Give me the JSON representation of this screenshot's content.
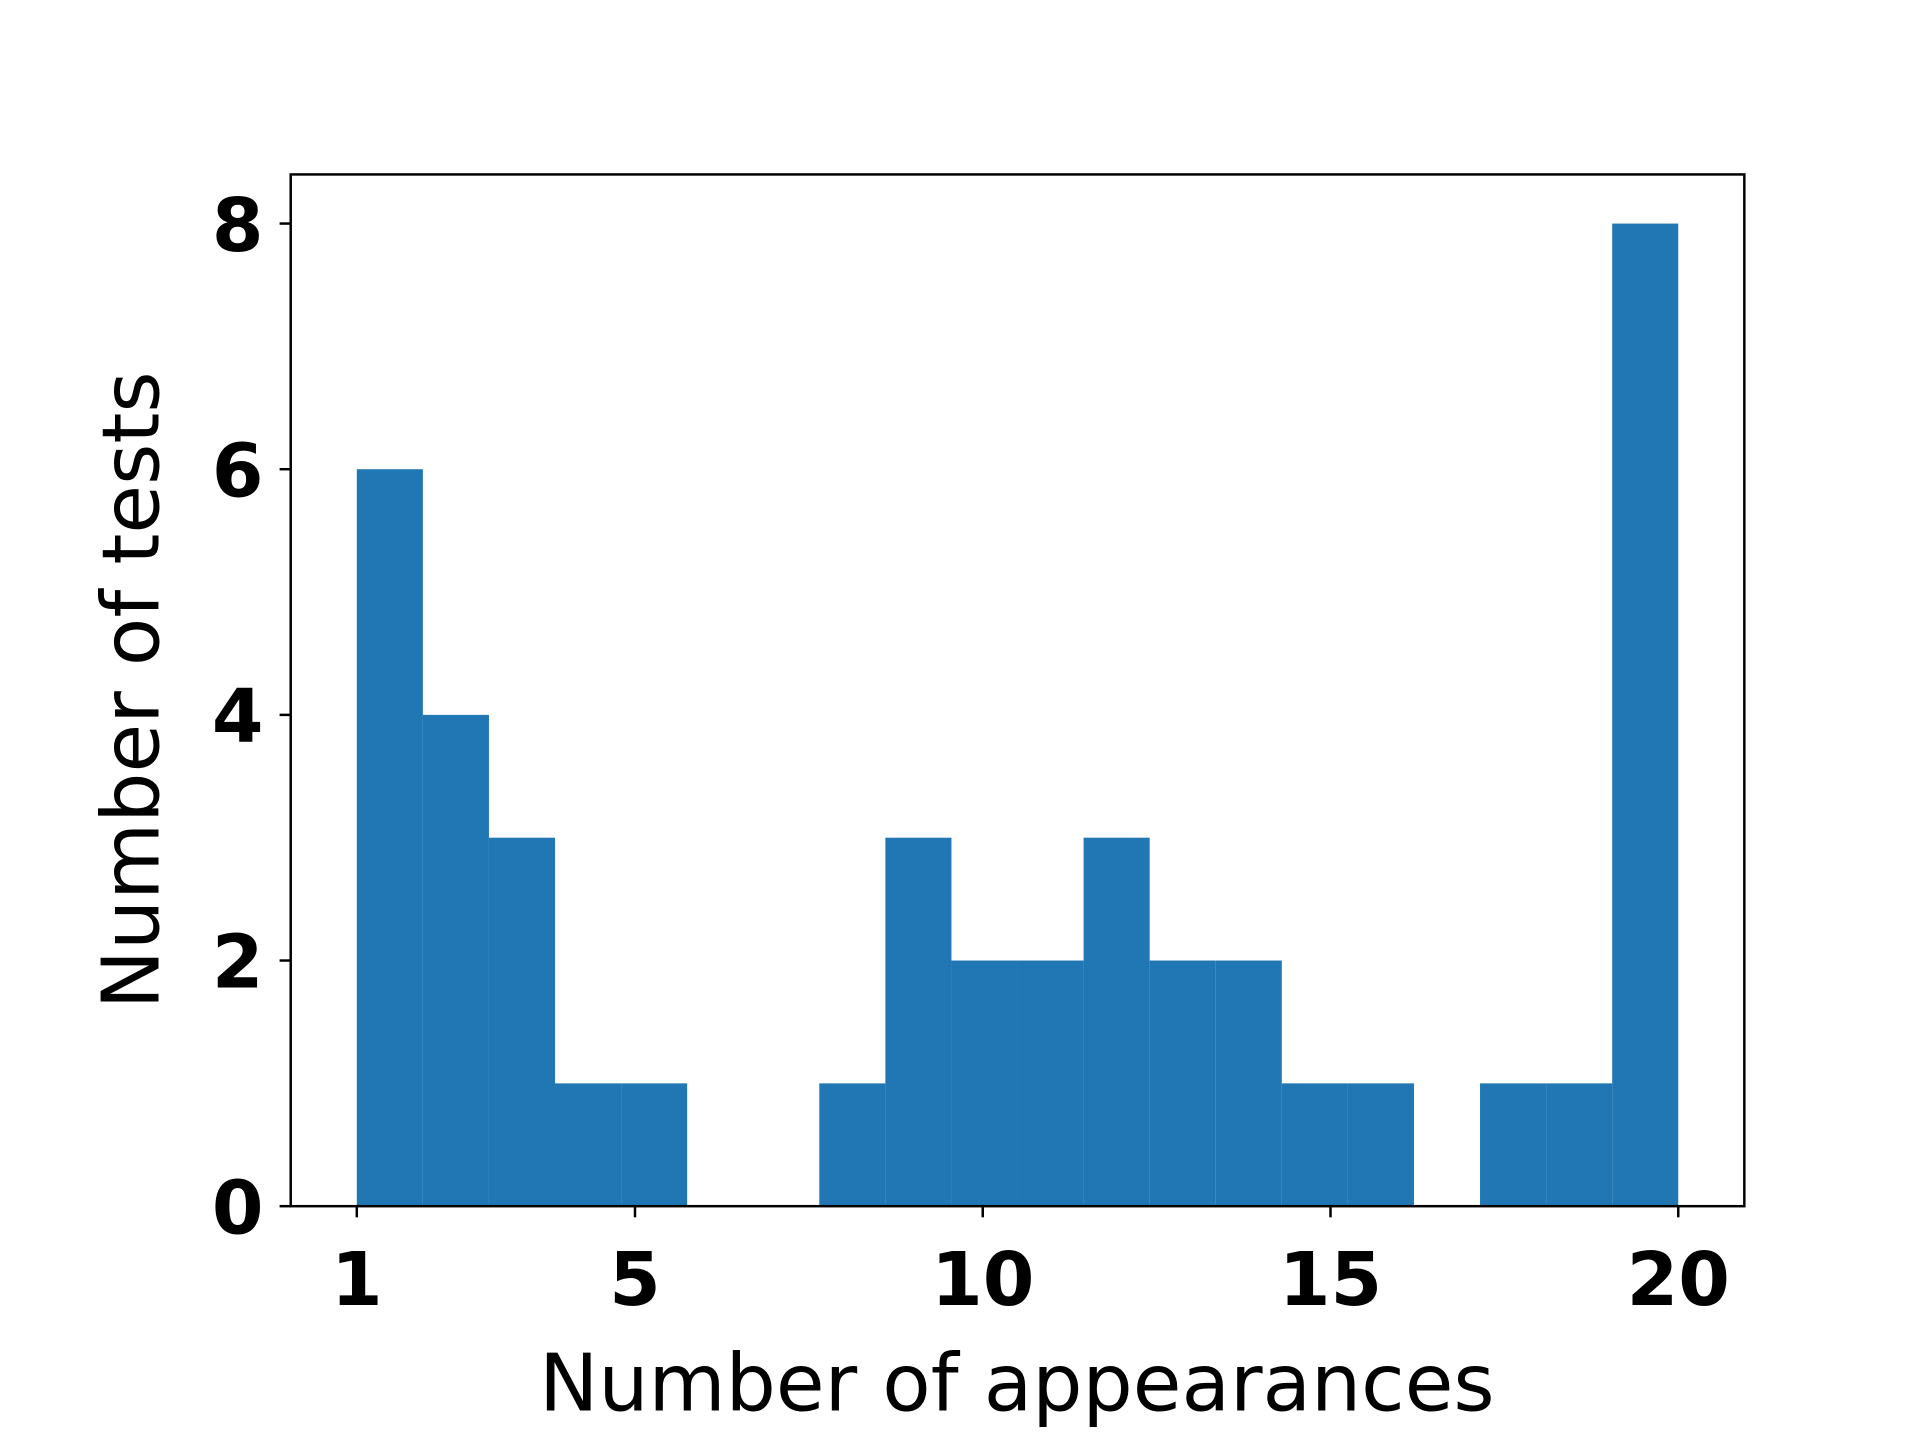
{
  "chart_data": {
    "type": "histogram",
    "xlabel": "Number of appearances",
    "ylabel": "Number of tests",
    "bins": [
      1,
      1.95,
      2.9,
      3.85,
      4.8,
      5.75,
      6.7,
      7.65,
      8.6,
      9.55,
      10.5,
      11.45,
      12.4,
      13.35,
      14.3,
      15.25,
      16.2,
      17.15,
      18.1,
      19.05,
      20
    ],
    "values": [
      6,
      4,
      3,
      1,
      1,
      0,
      0,
      1,
      3,
      2,
      2,
      3,
      2,
      2,
      1,
      1,
      0,
      1,
      1,
      8
    ],
    "color": "#2077b4",
    "xlim": [
      0.05,
      20.95
    ],
    "ylim": [
      0,
      8.4
    ],
    "xticks": [
      1,
      5,
      10,
      15,
      20
    ],
    "yticks": [
      0,
      2,
      4,
      6,
      8
    ],
    "grid": false
  }
}
